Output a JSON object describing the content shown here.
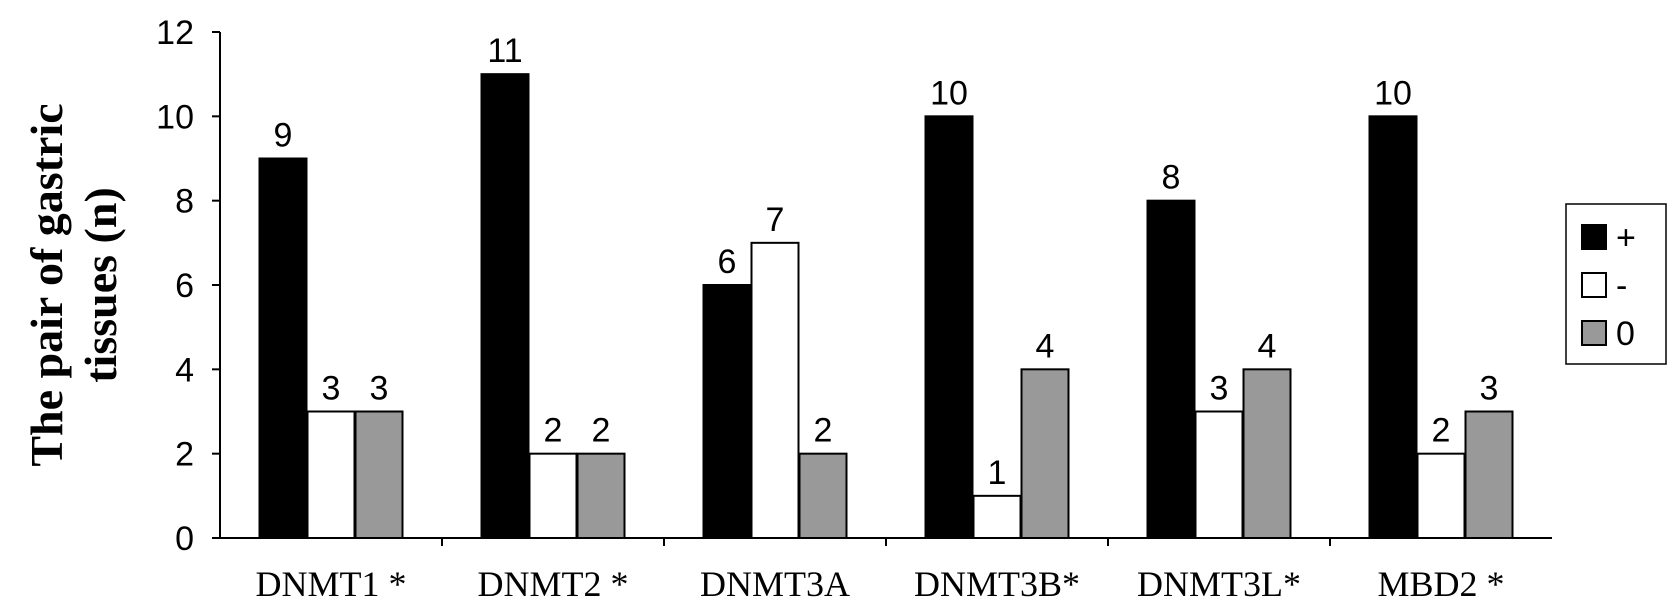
{
  "chart_data": {
    "type": "bar",
    "categories": [
      "DNMT1 *",
      "DNMT2 *",
      "DNMT3A",
      "DNMT3B*",
      "DNMT3L*",
      "MBD2 *"
    ],
    "series": [
      {
        "name": "+",
        "color": "#000000",
        "values": [
          9,
          11,
          6,
          10,
          8,
          10
        ]
      },
      {
        "name": "-",
        "color": "#ffffff",
        "values": [
          3,
          2,
          7,
          1,
          3,
          2
        ]
      },
      {
        "name": "0",
        "color": "#999999",
        "values": [
          3,
          2,
          2,
          4,
          4,
          3
        ]
      }
    ],
    "ylabel_lines": [
      "The pair of gastric",
      "tissues (n)"
    ],
    "xlabel": "",
    "ylim": [
      0,
      12
    ],
    "yticks": [
      0,
      2,
      4,
      6,
      8,
      10,
      12
    ],
    "grid": false,
    "legend_position": "right"
  }
}
